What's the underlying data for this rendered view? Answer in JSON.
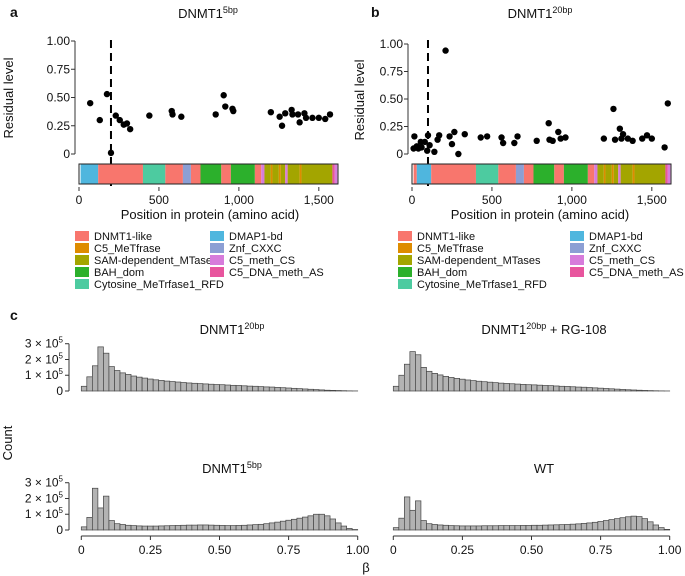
{
  "colors": {
    "DNMT1-like": "#F8766D",
    "C5_MeTfrase": "#DE8C00",
    "SAM-dependent_MTases": "#A3A500",
    "BAH_dom": "#2CB02C",
    "Cytosine_MeTrfase1_RFD": "#4DCBA0",
    "DMAP1-bd": "#4FB6DE",
    "Znf_CXXC": "#8C9FD4",
    "C5_meth_CS": "#D77CDB",
    "C5_DNA_meth_AS": "#E8559E",
    "hist_fill": "#B3B3B3",
    "hist_stroke": "#444444"
  },
  "panels": {
    "a": {
      "letter": "a",
      "title_main": "DNMT1",
      "title_sup": "5bp"
    },
    "b": {
      "letter": "b",
      "title_main": "DNMT1",
      "title_sup": "20bp"
    },
    "c": {
      "letter": "c",
      "titles": [
        {
          "main": "DNMT1",
          "sup": "20bp",
          "rest": ""
        },
        {
          "main": "DNMT1",
          "sup": "20bp",
          "rest": " + RG-108"
        },
        {
          "main": "DNMT1",
          "sup": "5bp",
          "rest": ""
        },
        {
          "main": "WT",
          "sup": "",
          "rest": ""
        }
      ]
    }
  },
  "axis_text": {
    "residual_ylabel": "Residual level",
    "position_xlabel": "Position in protein (amino acid)",
    "count_ylabel": "Count",
    "beta_xlabel": "β",
    "residual_yticks": [
      "1.00",
      "0.75",
      "0.50",
      "0.25",
      "0"
    ],
    "residual_yvalues": [
      1.0,
      0.75,
      0.5,
      0.25,
      0
    ],
    "position_xticks": [
      "0",
      "500",
      "1,000",
      "1,500"
    ],
    "position_xvalues": [
      0,
      500,
      1000,
      1500
    ],
    "count_ytick_mant": [
      "3 × 10",
      "2 × 10",
      "1 × 10",
      "0"
    ],
    "count_ytick_exp": [
      "5",
      "5",
      "5",
      ""
    ],
    "count_yvalues": [
      300000,
      200000,
      100000,
      0
    ],
    "beta_xticks": [
      "0",
      "0.25",
      "0.50",
      "0.75",
      "1.00"
    ],
    "beta_xvalues": [
      0,
      0.25,
      0.5,
      0.75,
      1.0
    ]
  },
  "legend": {
    "col1": [
      "DNMT1-like",
      "C5_MeTfrase",
      "SAM-dependent_MTases",
      "BAH_dom",
      "Cytosine_MeTrfase1_RFD"
    ],
    "col2": [
      "DMAP1-bd",
      "Znf_CXXC",
      "C5_meth_CS",
      "C5_DNA_meth_AS"
    ]
  },
  "chart_data": [
    {
      "type": "scatter",
      "panel": "a",
      "xlim": [
        0,
        1620
      ],
      "ylim": [
        0,
        1.0
      ],
      "cut_position": 200,
      "x": [
        70,
        130,
        175,
        200,
        230,
        255,
        280,
        300,
        320,
        440,
        580,
        585,
        640,
        855,
        905,
        915,
        960,
        965,
        1200,
        1255,
        1270,
        1290,
        1330,
        1335,
        1370,
        1380,
        1410,
        1420,
        1460,
        1500,
        1540,
        1570
      ],
      "y": [
        0.45,
        0.3,
        0.53,
        0.01,
        0.34,
        0.3,
        0.26,
        0.27,
        0.22,
        0.34,
        0.38,
        0.35,
        0.33,
        0.35,
        0.52,
        0.42,
        0.4,
        0.38,
        0.37,
        0.33,
        0.25,
        0.36,
        0.39,
        0.35,
        0.35,
        0.28,
        0.36,
        0.32,
        0.32,
        0.32,
        0.31,
        0.35
      ],
      "domains": [
        {
          "name": "DMAP1-bd",
          "start": 10,
          "end": 120
        },
        {
          "name": "DNMT1-like",
          "start": 120,
          "end": 400
        },
        {
          "name": "Cytosine_MeTrfase1_RFD",
          "start": 400,
          "end": 540
        },
        {
          "name": "DNMT1-like",
          "start": 540,
          "end": 650
        },
        {
          "name": "Znf_CXXC",
          "start": 650,
          "end": 700
        },
        {
          "name": "DNMT1-like",
          "start": 700,
          "end": 760
        },
        {
          "name": "BAH_dom",
          "start": 760,
          "end": 890
        },
        {
          "name": "DNMT1-like",
          "start": 890,
          "end": 950
        },
        {
          "name": "BAH_dom",
          "start": 950,
          "end": 1100
        },
        {
          "name": "DNMT1-like",
          "start": 1100,
          "end": 1140
        },
        {
          "name": "C5_meth_CS",
          "start": 1140,
          "end": 1160
        },
        {
          "name": "SAM-dependent_MTases",
          "start": 1160,
          "end": 1200
        },
        {
          "name": "C5_MeTfrase",
          "start": 1200,
          "end": 1210
        },
        {
          "name": "SAM-dependent_MTases",
          "start": 1210,
          "end": 1250
        },
        {
          "name": "C5_MeTfrase",
          "start": 1250,
          "end": 1262
        },
        {
          "name": "SAM-dependent_MTases",
          "start": 1262,
          "end": 1290
        },
        {
          "name": "C5_meth_CS",
          "start": 1290,
          "end": 1305
        },
        {
          "name": "SAM-dependent_MTases",
          "start": 1305,
          "end": 1380
        },
        {
          "name": "C5_MeTfrase",
          "start": 1380,
          "end": 1392
        },
        {
          "name": "SAM-dependent_MTases",
          "start": 1392,
          "end": 1585
        },
        {
          "name": "C5_DNA_meth_AS",
          "start": 1585,
          "end": 1600
        },
        {
          "name": "C5_meth_CS",
          "start": 1600,
          "end": 1616
        }
      ]
    },
    {
      "type": "scatter",
      "panel": "b",
      "xlim": [
        0,
        1620
      ],
      "ylim": [
        0,
        1.0
      ],
      "cut_position": 100,
      "x": [
        10,
        15,
        30,
        40,
        55,
        60,
        80,
        95,
        100,
        110,
        140,
        160,
        170,
        210,
        235,
        250,
        265,
        290,
        330,
        430,
        470,
        560,
        570,
        640,
        660,
        780,
        855,
        860,
        880,
        915,
        930,
        960,
        1200,
        1260,
        1270,
        1300,
        1310,
        1320,
        1350,
        1380,
        1440,
        1470,
        1500,
        1580,
        1600
      ],
      "y": [
        0.05,
        0.16,
        0.07,
        0.05,
        0.11,
        0.06,
        0.11,
        0.03,
        0.17,
        0.08,
        0.02,
        0.13,
        0.17,
        0.94,
        0.16,
        0.09,
        0.2,
        0.0,
        0.18,
        0.15,
        0.16,
        0.15,
        0.1,
        0.1,
        0.16,
        0.12,
        0.28,
        0.13,
        0.12,
        0.2,
        0.14,
        0.15,
        0.14,
        0.41,
        0.13,
        0.23,
        0.14,
        0.18,
        0.14,
        0.12,
        0.14,
        0.17,
        0.14,
        0.06,
        0.46
      ],
      "domains": [
        {
          "name": "DNMT1-like",
          "start": 10,
          "end": 30
        },
        {
          "name": "DMAP1-bd",
          "start": 30,
          "end": 120
        },
        {
          "name": "DNMT1-like",
          "start": 120,
          "end": 400
        },
        {
          "name": "Cytosine_MeTrfase1_RFD",
          "start": 400,
          "end": 540
        },
        {
          "name": "DNMT1-like",
          "start": 540,
          "end": 650
        },
        {
          "name": "Znf_CXXC",
          "start": 650,
          "end": 700
        },
        {
          "name": "DNMT1-like",
          "start": 700,
          "end": 760
        },
        {
          "name": "BAH_dom",
          "start": 760,
          "end": 890
        },
        {
          "name": "DNMT1-like",
          "start": 890,
          "end": 950
        },
        {
          "name": "BAH_dom",
          "start": 950,
          "end": 1100
        },
        {
          "name": "DNMT1-like",
          "start": 1100,
          "end": 1140
        },
        {
          "name": "C5_meth_CS",
          "start": 1140,
          "end": 1160
        },
        {
          "name": "SAM-dependent_MTases",
          "start": 1160,
          "end": 1200
        },
        {
          "name": "C5_MeTfrase",
          "start": 1200,
          "end": 1210
        },
        {
          "name": "SAM-dependent_MTases",
          "start": 1210,
          "end": 1250
        },
        {
          "name": "C5_MeTfrase",
          "start": 1250,
          "end": 1262
        },
        {
          "name": "SAM-dependent_MTases",
          "start": 1262,
          "end": 1290
        },
        {
          "name": "C5_meth_CS",
          "start": 1290,
          "end": 1305
        },
        {
          "name": "SAM-dependent_MTases",
          "start": 1305,
          "end": 1380
        },
        {
          "name": "C5_MeTfrase",
          "start": 1380,
          "end": 1392
        },
        {
          "name": "SAM-dependent_MTases",
          "start": 1392,
          "end": 1585
        },
        {
          "name": "C5_DNA_meth_AS",
          "start": 1585,
          "end": 1600
        },
        {
          "name": "C5_meth_CS",
          "start": 1600,
          "end": 1616
        }
      ]
    },
    {
      "type": "bar",
      "panel": "c",
      "subplot": "DNMT1 20bp",
      "bin_width": 0.02,
      "x_start": 0.0,
      "xlim": [
        -0.03,
        1.03
      ],
      "ylim": [
        0,
        330000
      ],
      "values": [
        30000,
        90000,
        160000,
        280000,
        240000,
        155000,
        130000,
        115000,
        105000,
        95000,
        88000,
        82000,
        76000,
        71000,
        67000,
        63000,
        60000,
        57000,
        54000,
        51000,
        49000,
        47000,
        45000,
        43000,
        41000,
        40000,
        38000,
        36000,
        35000,
        33000,
        31000,
        30000,
        28000,
        26000,
        25000,
        23000,
        21000,
        19000,
        17000,
        15000,
        13000,
        11000,
        9000,
        7000,
        5000,
        4000,
        3000,
        2000,
        1000,
        500
      ]
    },
    {
      "type": "bar",
      "panel": "c",
      "subplot": "DNMT1 20bp + RG-108",
      "bin_width": 0.02,
      "x_start": 0.0,
      "xlim": [
        -0.03,
        1.03
      ],
      "ylim": [
        0,
        330000
      ],
      "values": [
        30000,
        100000,
        170000,
        250000,
        230000,
        150000,
        125000,
        112000,
        102000,
        93000,
        86000,
        80000,
        75000,
        70000,
        66000,
        62000,
        59000,
        56000,
        53000,
        50000,
        48000,
        46000,
        44000,
        42000,
        40000,
        39000,
        37000,
        35000,
        34000,
        32000,
        30000,
        29000,
        27000,
        25000,
        24000,
        22000,
        20000,
        18000,
        16000,
        14000,
        12000,
        10000,
        8000,
        6500,
        5000,
        3500,
        2500,
        1500,
        800,
        300
      ]
    },
    {
      "type": "bar",
      "panel": "c",
      "subplot": "DNMT1 5bp",
      "bin_width": 0.02,
      "x_start": 0.0,
      "xlim": [
        -0.03,
        1.03
      ],
      "ylim": [
        0,
        330000
      ],
      "values": [
        20000,
        80000,
        265000,
        140000,
        215000,
        60000,
        40000,
        35000,
        30000,
        28000,
        26000,
        25000,
        25000,
        25000,
        26000,
        27000,
        28000,
        29000,
        30000,
        31000,
        31000,
        32000,
        32000,
        31000,
        30000,
        29000,
        28000,
        28000,
        29000,
        30000,
        32000,
        34000,
        36000,
        40000,
        45000,
        50000,
        56000,
        62000,
        68000,
        75000,
        82000,
        90000,
        100000,
        100000,
        90000,
        70000,
        45000,
        25000,
        10000,
        3000
      ]
    },
    {
      "type": "bar",
      "panel": "c",
      "subplot": "WT",
      "bin_width": 0.02,
      "x_start": 0.0,
      "xlim": [
        -0.03,
        1.03
      ],
      "ylim": [
        0,
        330000
      ],
      "values": [
        15000,
        75000,
        210000,
        125000,
        185000,
        60000,
        40000,
        35000,
        32000,
        30000,
        28000,
        27000,
        26000,
        26000,
        26000,
        26000,
        27000,
        27000,
        27000,
        28000,
        28000,
        28000,
        28000,
        29000,
        29000,
        30000,
        30000,
        31000,
        32000,
        33000,
        34000,
        35000,
        37000,
        39000,
        42000,
        45000,
        49000,
        54000,
        60000,
        66000,
        72000,
        78000,
        84000,
        88000,
        85000,
        72000,
        52000,
        32000,
        15000,
        4000
      ]
    }
  ]
}
